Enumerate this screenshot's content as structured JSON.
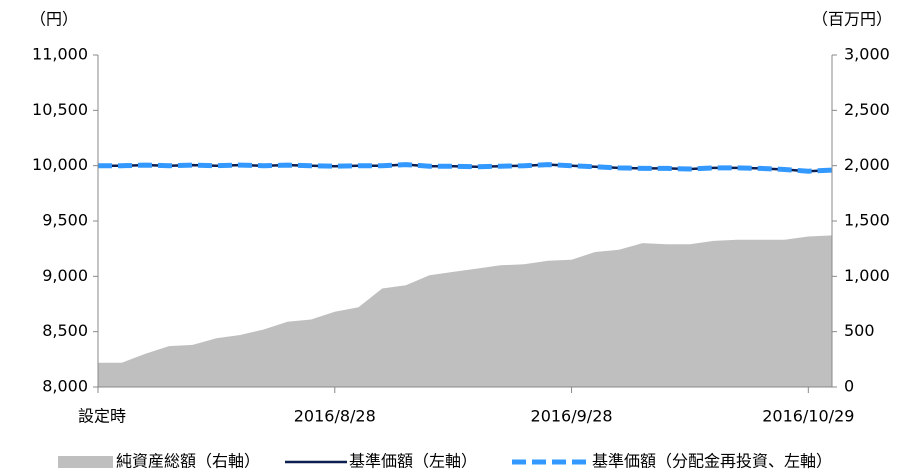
{
  "chart_data": {
    "type": "line",
    "ylabel": "（円）",
    "y2label": "（百万円）",
    "categories": [
      "設定時",
      null,
      null,
      null,
      null,
      null,
      null,
      null,
      null,
      null,
      "2016/8/28",
      null,
      null,
      null,
      null,
      null,
      null,
      null,
      null,
      null,
      "2016/9/28",
      null,
      null,
      null,
      null,
      null,
      null,
      null,
      null,
      null,
      "2016/10/29",
      null
    ],
    "series": [
      {
        "name": "純資産総額（右軸）",
        "type": "area",
        "axis": "y2",
        "color": "#bfbfbf",
        "values": [
          220,
          220,
          300,
          370,
          380,
          440,
          470,
          520,
          590,
          610,
          680,
          720,
          890,
          920,
          1010,
          1040,
          1070,
          1100,
          1110,
          1140,
          1150,
          1220,
          1240,
          1300,
          1290,
          1290,
          1320,
          1330,
          1330,
          1330,
          1360,
          1370
        ]
      },
      {
        "name": "基準価額（左軸）",
        "type": "line",
        "axis": "y",
        "color": "#0d1f4f",
        "values": [
          10000,
          10000,
          10005,
          10000,
          10005,
          10000,
          10005,
          10000,
          10005,
          10000,
          9995,
          10000,
          10000,
          10010,
          9995,
          9995,
          9990,
          9995,
          10000,
          10010,
          10000,
          9990,
          9980,
          9975,
          9975,
          9970,
          9980,
          9980,
          9975,
          9965,
          9950,
          9960
        ]
      },
      {
        "name": "基準価額（分配金再投資、左軸）",
        "type": "dashed",
        "axis": "y",
        "color": "#3399ff",
        "values": [
          10000,
          10000,
          10005,
          10000,
          10005,
          10000,
          10005,
          10000,
          10005,
          10000,
          9995,
          10000,
          10000,
          10010,
          9995,
          9995,
          9990,
          9995,
          10000,
          10010,
          10000,
          9990,
          9980,
          9975,
          9975,
          9970,
          9980,
          9980,
          9975,
          9965,
          9950,
          9960
        ]
      }
    ],
    "ylim": [
      8000,
      11000
    ],
    "yticks": [
      {
        "value": 8000,
        "label": "8,000"
      },
      {
        "value": 8500,
        "label": "8,500"
      },
      {
        "value": 9000,
        "label": "9,000"
      },
      {
        "value": 9500,
        "label": "9,500"
      },
      {
        "value": 10000,
        "label": "10,000"
      },
      {
        "value": 10500,
        "label": "10,500"
      },
      {
        "value": 11000,
        "label": "11,000"
      }
    ],
    "y2lim": [
      0,
      3000
    ],
    "y2ticks": [
      0,
      500,
      {
        "value": 1000,
        "label": "1,000"
      },
      {
        "value": 1500,
        "label": "1,500"
      },
      {
        "value": 2000,
        "label": "2,000"
      },
      {
        "value": 2500,
        "label": "2,500"
      },
      {
        "value": 3000,
        "label": "3,000"
      }
    ],
    "legend": "bottom"
  }
}
